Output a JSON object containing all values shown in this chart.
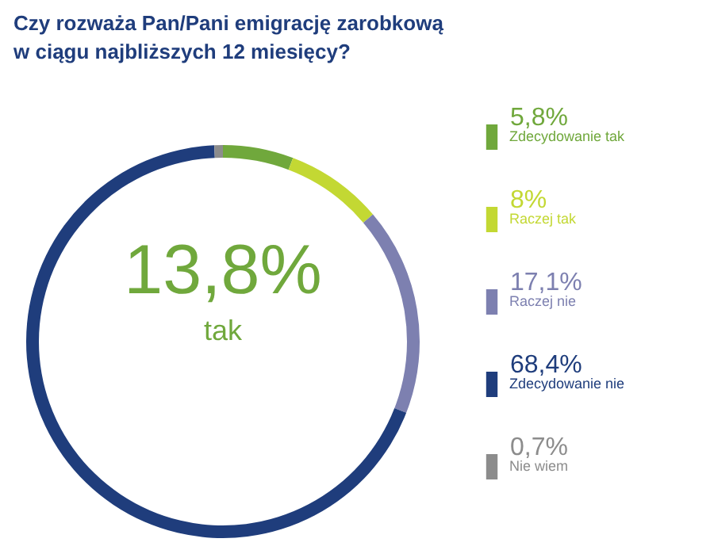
{
  "chart_data": {
    "type": "donut",
    "title": "Czy rozważa Pan/Pani emigrację zarobkową\nw ciągu najbliższych 12 miesięcy?",
    "categories": [
      "Zdecydowanie tak",
      "Raczej tak",
      "Raczej nie",
      "Zdecydowanie nie",
      "Nie wiem"
    ],
    "values": [
      5.8,
      8,
      17.1,
      68.4,
      0.7
    ],
    "colors": [
      "#70a83c",
      "#c3d833",
      "#7d80b0",
      "#1f3d7c",
      "#8c8c8c"
    ],
    "value_labels": [
      "5,8%",
      "8%",
      "17,1%",
      "68,4%",
      "0,7%"
    ],
    "annotations": [
      "13,8%",
      "tak"
    ],
    "legend": "right"
  }
}
